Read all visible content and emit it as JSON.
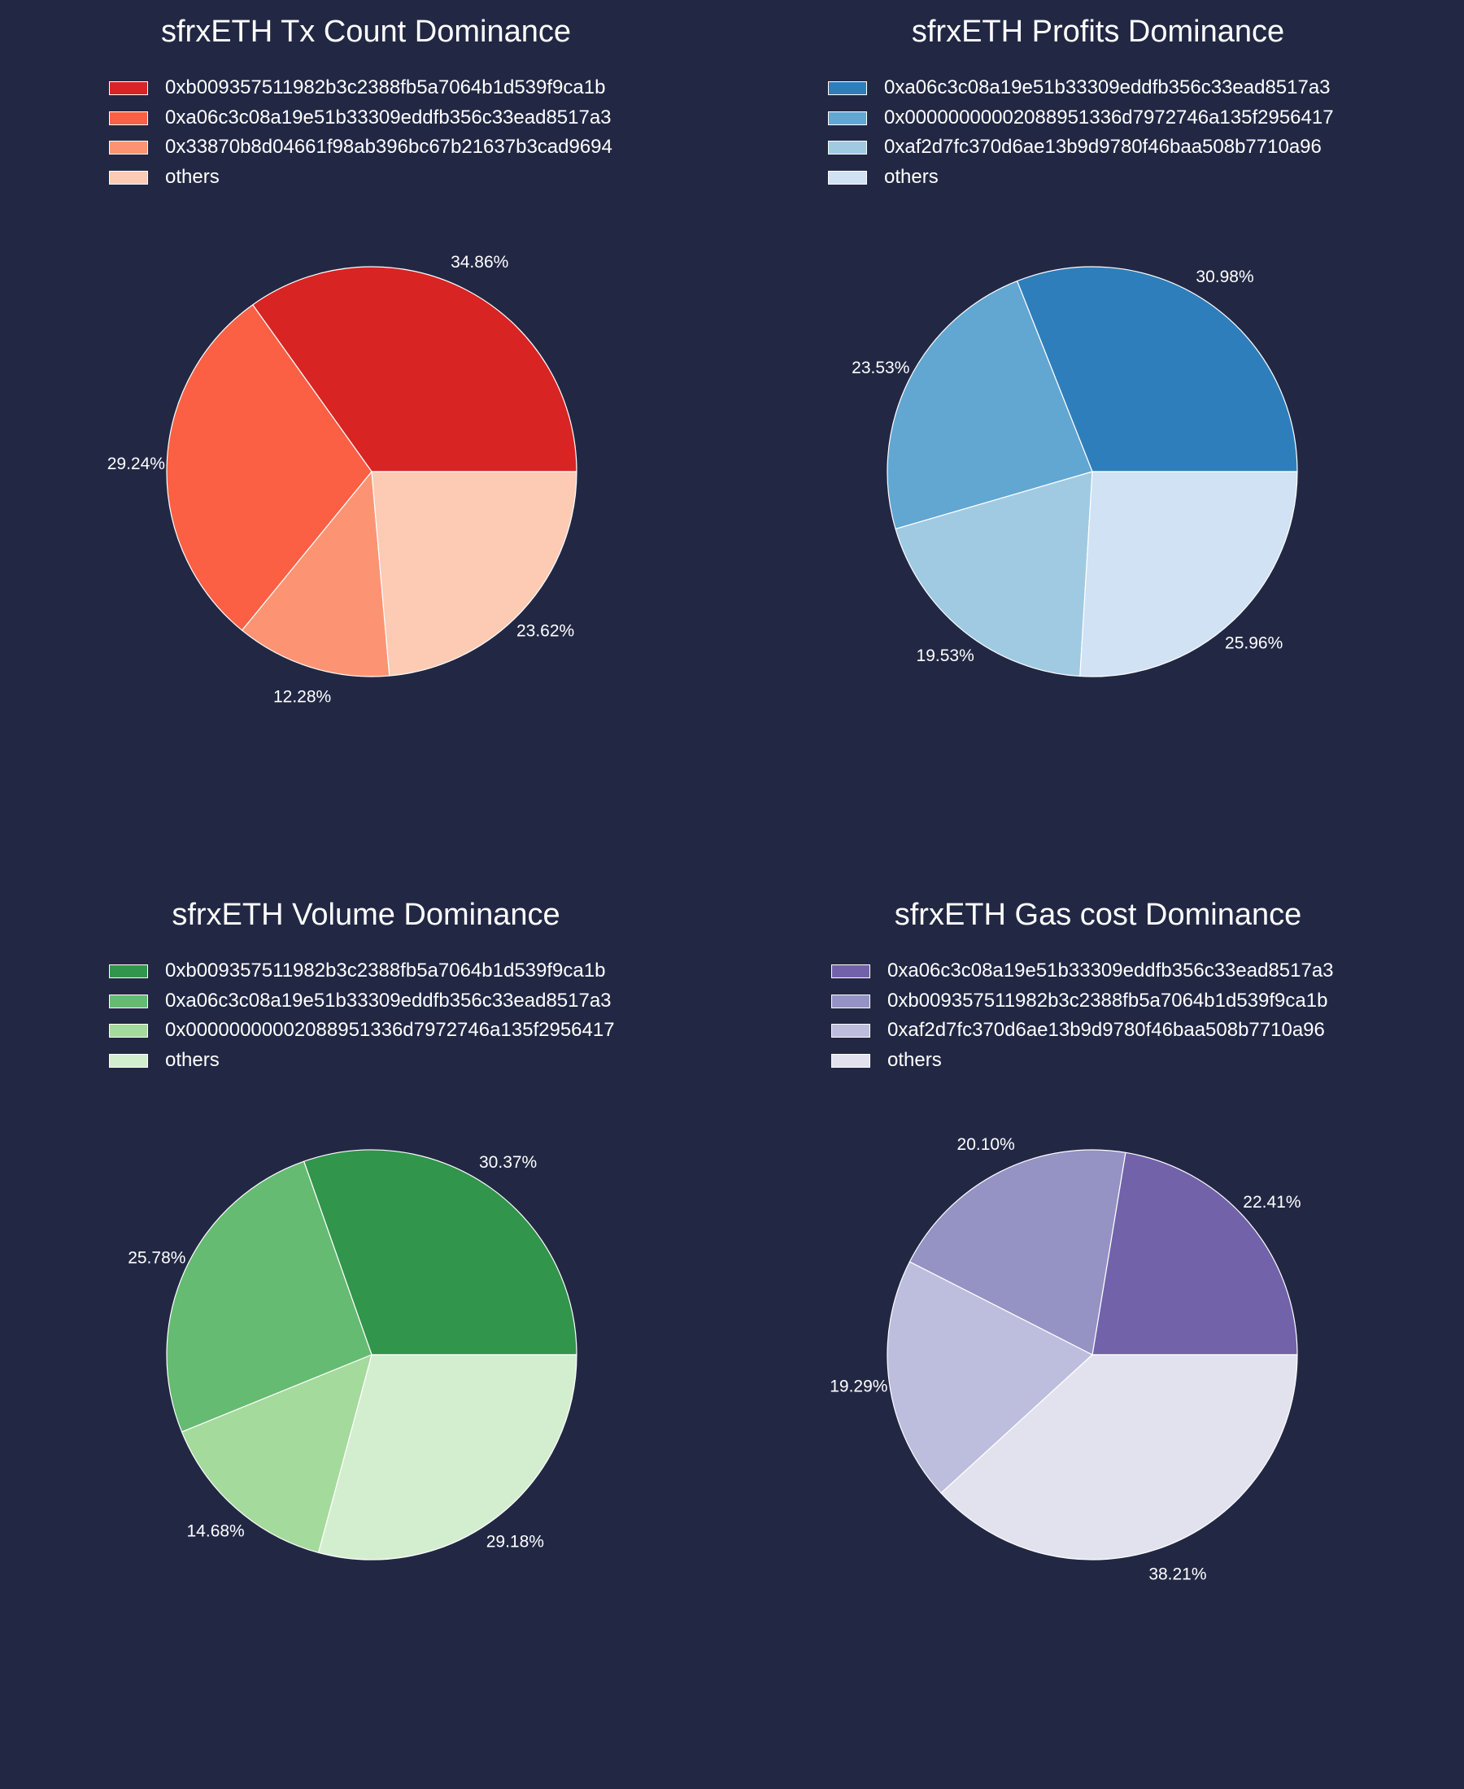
{
  "colors": {
    "background": "#222844"
  },
  "chart_data": [
    {
      "type": "pie",
      "title": "sfrxETH Tx Count Dominance",
      "labels": [
        "0xb009357511982b3c2388fb5a7064b1d539f9ca1b",
        "0xa06c3c08a19e51b33309eddfb356c33ead8517a3",
        "0x33870b8d04661f98ab396bc67b21637b3cad9694",
        "others"
      ],
      "values": [
        34.86,
        29.24,
        12.28,
        23.62
      ],
      "value_labels": [
        "34.86%",
        "29.24%",
        "12.28%",
        "23.62%"
      ],
      "colors": [
        "#d92424",
        "#fb6044",
        "#fc9474",
        "#fdcab4"
      ],
      "legend_position": "top-left"
    },
    {
      "type": "pie",
      "title": "sfrxETH Profits Dominance",
      "labels": [
        "0xa06c3c08a19e51b33309eddfb356c33ead8517a3",
        "0x00000000002088951336d7972746a135f2956417",
        "0xaf2d7fc370d6ae13b9d9780f46baa508b7710a96",
        "others"
      ],
      "values": [
        30.98,
        23.53,
        19.53,
        25.96
      ],
      "value_labels": [
        "30.98%",
        "23.53%",
        "19.53%",
        "25.96%"
      ],
      "colors": [
        "#2f7ebc",
        "#62a6d2",
        "#a0cae2",
        "#d0e2f3"
      ],
      "legend_position": "top-left"
    },
    {
      "type": "pie",
      "title": "sfrxETH Volume Dominance",
      "labels": [
        "0xb009357511982b3c2388fb5a7064b1d539f9ca1b",
        "0xa06c3c08a19e51b33309eddfb356c33ead8517a3",
        "0x00000000002088951336d7972746a135f2956417",
        "others"
      ],
      "values": [
        30.37,
        25.78,
        14.68,
        29.18
      ],
      "value_labels": [
        "30.37%",
        "25.78%",
        "14.68%",
        "29.18%"
      ],
      "colors": [
        "#31954c",
        "#65bb71",
        "#a4da9c",
        "#d3eece"
      ],
      "legend_position": "top-left"
    },
    {
      "type": "pie",
      "title": "sfrxETH Gas cost Dominance",
      "labels": [
        "0xa06c3c08a19e51b33309eddfb356c33ead8517a3",
        "0xb009357511982b3c2388fb5a7064b1d539f9ca1b",
        "0xaf2d7fc370d6ae13b9d9780f46baa508b7710a96",
        "others"
      ],
      "values": [
        22.41,
        20.1,
        19.29,
        38.21
      ],
      "value_labels": [
        "22.41%",
        "20.10%",
        "19.29%",
        "38.21%"
      ],
      "colors": [
        "#7262aa",
        "#9592c4",
        "#bdbddd",
        "#e2e2ef"
      ],
      "legend_position": "top-left"
    }
  ]
}
